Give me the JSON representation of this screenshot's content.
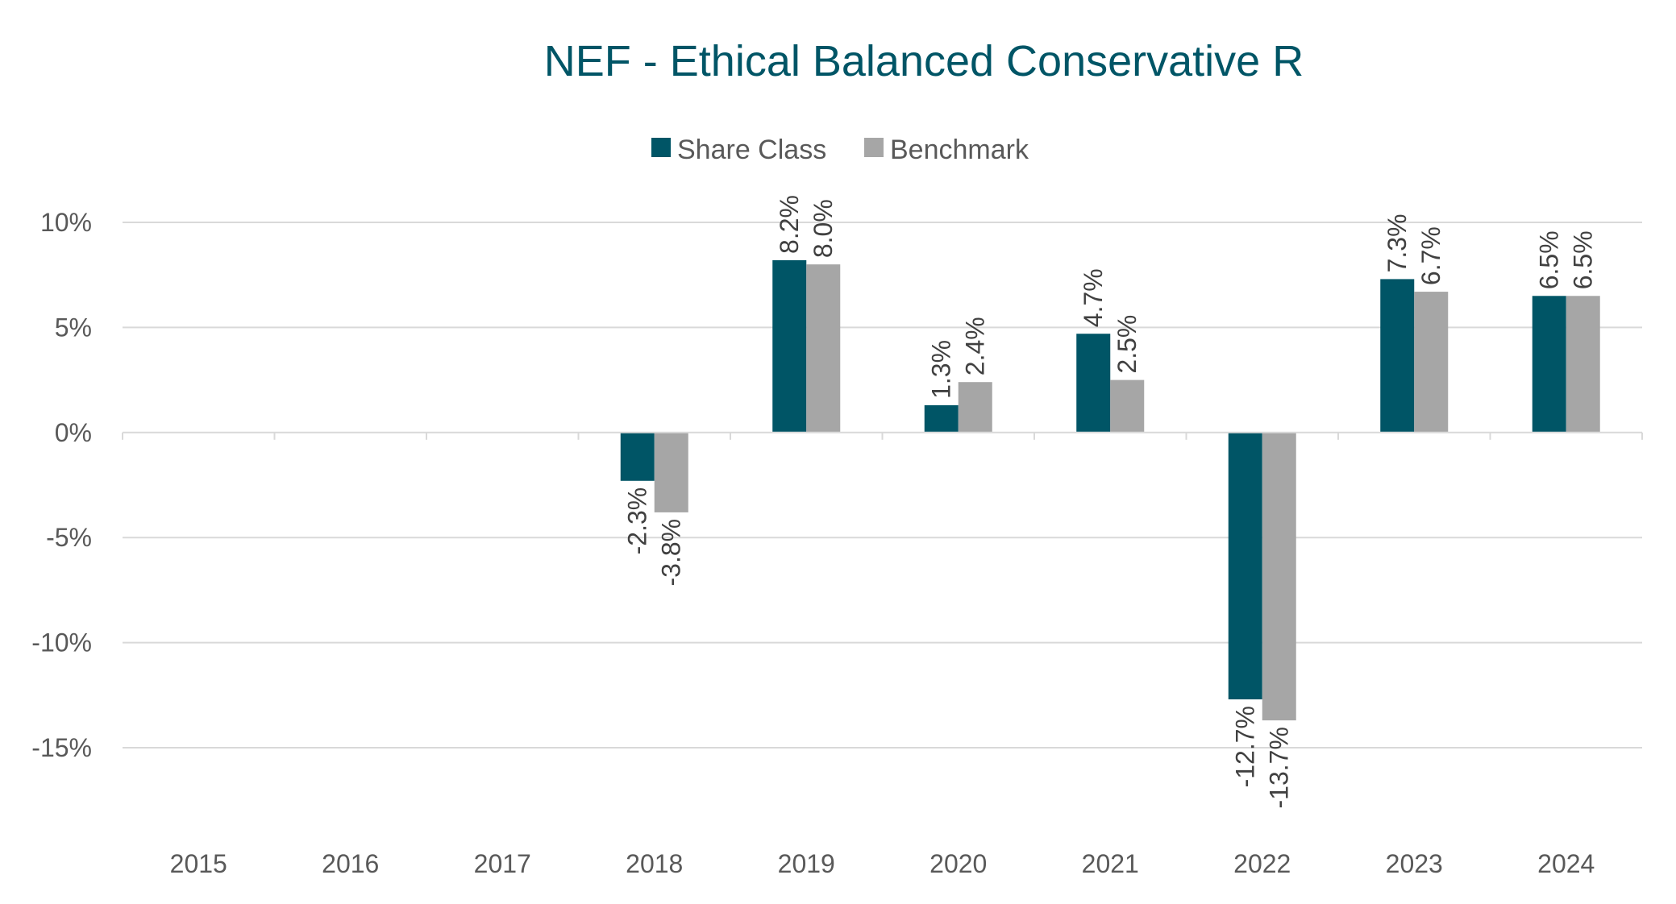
{
  "chart_data": {
    "type": "bar",
    "title": "NEF - Ethical Balanced Conservative R",
    "categories": [
      "2015",
      "2016",
      "2017",
      "2018",
      "2019",
      "2020",
      "2021",
      "2022",
      "2023",
      "2024"
    ],
    "series": [
      {
        "name": "Share Class",
        "color": "#005566",
        "values": [
          null,
          null,
          null,
          -2.3,
          8.2,
          1.3,
          4.7,
          -12.7,
          7.3,
          6.5
        ],
        "labels": [
          "",
          "",
          "",
          "-2.3%",
          "8.2%",
          "1.3%",
          "4.7%",
          "-12.7%",
          "7.3%",
          "6.5%"
        ]
      },
      {
        "name": "Benchmark",
        "color": "#a6a6a6",
        "values": [
          null,
          null,
          null,
          -3.8,
          8.0,
          2.4,
          2.5,
          -13.7,
          6.7,
          6.5
        ],
        "labels": [
          "",
          "",
          "",
          "-3.8%",
          "8.0%",
          "2.4%",
          "2.5%",
          "-13.7%",
          "6.7%",
          "6.5%"
        ]
      }
    ],
    "yticks": [
      10,
      5,
      0,
      -5,
      -10,
      -15
    ],
    "ytick_labels": [
      "10%",
      "5%",
      "0%",
      "-5%",
      "-10%",
      "-15%"
    ],
    "ylim": [
      -15,
      10
    ],
    "xlabel": "",
    "ylabel": "",
    "legend_position": "top-center",
    "grid": true,
    "title_color": "#005566"
  }
}
